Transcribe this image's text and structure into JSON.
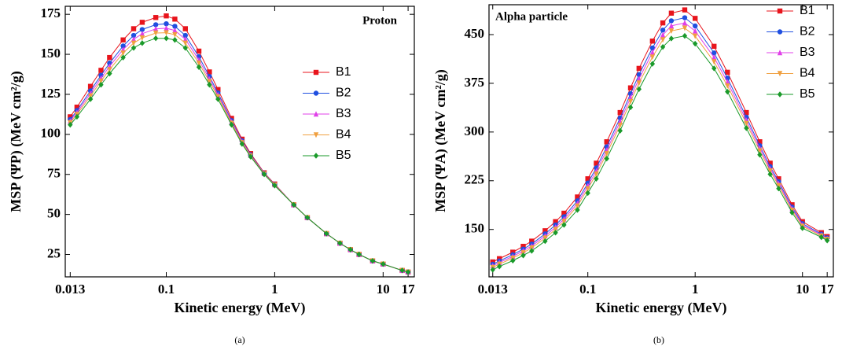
{
  "chart_data": [
    {
      "type": "line",
      "annotation": "Proton",
      "annotation_color": "#e0209c",
      "caption": "(a)",
      "xlabel": "Kinetic energy (MeV)",
      "ylabel": "MSP (ΨP) (MeV cm²/g)",
      "xscale": "log",
      "xlim": [
        0.0117,
        19.4
      ],
      "xticks": [
        0.013,
        0.1,
        1,
        10,
        17
      ],
      "ylim": [
        11,
        180
      ],
      "yticks": [
        25,
        50,
        75,
        100,
        125,
        150,
        175
      ],
      "legend": "right",
      "x": [
        0.013,
        0.015,
        0.02,
        0.025,
        0.03,
        0.04,
        0.05,
        0.06,
        0.08,
        0.1,
        0.12,
        0.15,
        0.2,
        0.25,
        0.3,
        0.4,
        0.5,
        0.6,
        0.8,
        1,
        1.5,
        2,
        3,
        4,
        5,
        6,
        8,
        10,
        15,
        17
      ],
      "series": [
        {
          "name": "B1",
          "color": "#e8141c",
          "marker": "square",
          "values": [
            111,
            117,
            130,
            140,
            148,
            159,
            166,
            170,
            173,
            174,
            172,
            166,
            152,
            139,
            128,
            110,
            97,
            88,
            76,
            69,
            56,
            48,
            38,
            32,
            28,
            25,
            21,
            19,
            15,
            14
          ]
        },
        {
          "name": "B2",
          "color": "#1f4fe0",
          "marker": "circle",
          "values": [
            109.3,
            114.9,
            127.2,
            136.9,
            144.5,
            155.2,
            161.8,
            165.5,
            168.5,
            169.1,
            167.5,
            161.8,
            148.5,
            136.2,
            125.9,
            108.6,
            96,
            87.3,
            75.7,
            68.7,
            56,
            48,
            38,
            32,
            28,
            25,
            21,
            19,
            15,
            14
          ]
        },
        {
          "name": "B3",
          "color": "#e040e8",
          "marker": "triangle-up",
          "values": [
            108.3,
            113.7,
            125.6,
            135.1,
            142.5,
            153,
            159.4,
            162.9,
            165.9,
            166.3,
            164.9,
            159.4,
            146.5,
            134.6,
            124.7,
            107.8,
            95.4,
            86.9,
            75.5,
            68.5,
            56,
            48,
            38,
            32,
            28,
            25,
            21,
            19,
            15,
            14
          ]
        },
        {
          "name": "B4",
          "color": "#f0a040",
          "marker": "triangle-down",
          "values": [
            107.3,
            112.5,
            124,
            133.3,
            140.5,
            150.8,
            157,
            160.3,
            163.3,
            163.5,
            162.3,
            157,
            144.5,
            133,
            123.5,
            107,
            94.8,
            86.5,
            75.3,
            68.3,
            56,
            48,
            38,
            32,
            28,
            25,
            21,
            19,
            15,
            14
          ]
        },
        {
          "name": "B5",
          "color": "#1a9a2a",
          "marker": "diamond",
          "values": [
            106,
            111,
            122,
            131,
            138,
            148,
            154,
            157,
            160,
            160,
            159,
            154,
            142,
            131,
            122,
            106,
            94,
            86,
            75,
            68,
            56,
            48,
            38,
            32,
            28,
            25,
            21,
            19,
            15,
            14
          ]
        }
      ]
    },
    {
      "type": "line",
      "annotation": "Alpha particle",
      "annotation_color": "#a01010",
      "caption": "(b)",
      "xlabel": "Kinetic energy (MeV)",
      "ylabel": "MSP (ΨA) (MeV cm²/g)",
      "xscale": "log",
      "xlim": [
        0.012,
        19.4
      ],
      "xticks": [
        0.013,
        0.1,
        1,
        10,
        17
      ],
      "ylim": [
        77,
        496
      ],
      "yticks": [
        150,
        225,
        300,
        375,
        450
      ],
      "legend": "upper right",
      "x": [
        0.013,
        0.015,
        0.02,
        0.025,
        0.03,
        0.04,
        0.05,
        0.06,
        0.08,
        0.1,
        0.12,
        0.15,
        0.2,
        0.25,
        0.3,
        0.4,
        0.5,
        0.6,
        0.8,
        1,
        1.5,
        2,
        3,
        4,
        5,
        6,
        8,
        10,
        15,
        17
      ],
      "series": [
        {
          "name": "B1",
          "color": "#e8141c",
          "marker": "square",
          "values": [
            100,
            105,
            115,
            124,
            132,
            148,
            162,
            175,
            200,
            228,
            252,
            285,
            330,
            368,
            398,
            440,
            468,
            483,
            488,
            475,
            432,
            392,
            330,
            285,
            252,
            228,
            188,
            162,
            145,
            139
          ]
        },
        {
          "name": "B2",
          "color": "#1f4fe0",
          "marker": "circle",
          "values": [
            96.4,
            101.4,
            111.1,
            119.8,
            127.5,
            143.2,
            156.9,
            169.6,
            194,
            221.4,
            244.8,
            277.2,
            321.6,
            359,
            388.4,
            429.5,
            456.9,
            471.3,
            476,
            463.3,
            421.8,
            383,
            322.8,
            279,
            246.9,
            223.5,
            184.4,
            159,
            142.9,
            137.2
          ]
        },
        {
          "name": "B3",
          "color": "#e040e8",
          "marker": "triangle-up",
          "values": [
            94,
            99,
            108.5,
            117,
            124.5,
            140,
            153.5,
            166,
            190,
            217,
            240,
            272,
            316,
            353,
            382,
            422.5,
            449.5,
            463.5,
            468,
            455.5,
            415,
            377,
            318,
            275,
            243.5,
            220.5,
            182,
            157,
            141.5,
            136
          ]
        },
        {
          "name": "B4",
          "color": "#f0a040",
          "marker": "triangle-down",
          "values": [
            91.6,
            96.6,
            105.9,
            114.2,
            121.5,
            136.8,
            150.1,
            162.4,
            186,
            212.6,
            235.2,
            266.8,
            310.4,
            347,
            375.6,
            415.5,
            442.1,
            455.7,
            460,
            447.7,
            408.2,
            371,
            313.2,
            271,
            240.1,
            217.5,
            179.6,
            155,
            140.1,
            134.8
          ]
        },
        {
          "name": "B5",
          "color": "#1a9a2a",
          "marker": "diamond",
          "values": [
            88,
            93,
            102,
            110,
            117,
            132,
            145,
            157,
            180,
            206,
            228,
            259,
            302,
            338,
            366,
            405,
            431,
            444,
            448,
            436,
            398,
            362,
            306,
            265,
            235,
            213,
            176,
            152,
            138,
            133
          ]
        }
      ]
    }
  ]
}
